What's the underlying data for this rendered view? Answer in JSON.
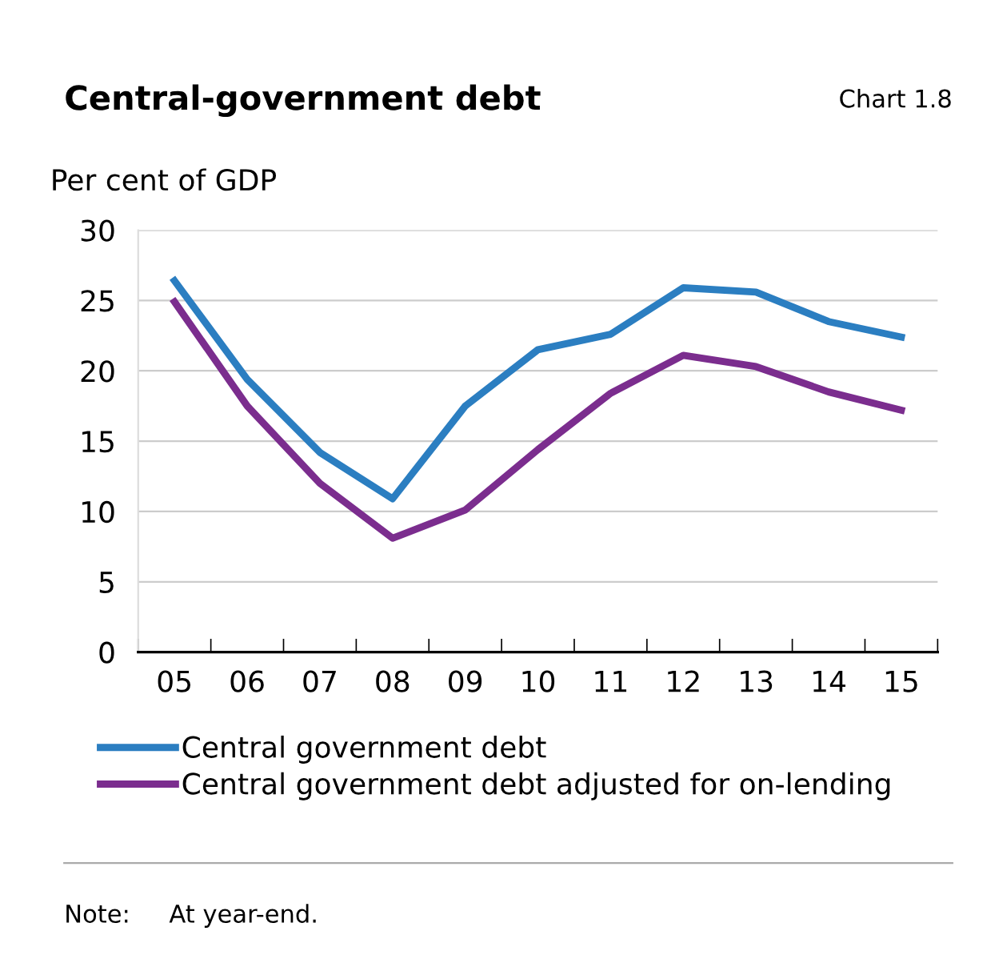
{
  "chart_data": {
    "type": "line",
    "title": "Central-government debt",
    "ylabel": "Per cent of GDP",
    "annotations": [
      "Chart 1.8",
      "Note:     At year-end."
    ],
    "categories": [
      "05",
      "06",
      "07",
      "08",
      "09",
      "10",
      "11",
      "12",
      "13",
      "14",
      "15"
    ],
    "series": [
      {
        "name": "Central government debt",
        "color": "#2b7ec1",
        "values": [
          26.4,
          19.4,
          14.2,
          10.9,
          17.5,
          21.5,
          22.6,
          25.9,
          25.6,
          23.5,
          22.4
        ]
      },
      {
        "name": "Central government debt adjusted for on-lending",
        "color": "#7b2d8e",
        "values": [
          24.9,
          17.5,
          12.0,
          8.1,
          10.1,
          14.4,
          18.4,
          21.1,
          20.3,
          18.5,
          17.2
        ]
      }
    ],
    "ylim": [
      0,
      30
    ],
    "yticks": [
      0,
      5,
      10,
      15,
      20,
      25,
      30
    ],
    "grid": "y",
    "legend": "bottom",
    "marker": "none",
    "line_style": "solid"
  }
}
